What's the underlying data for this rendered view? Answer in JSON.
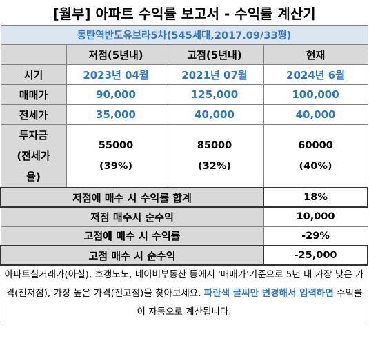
{
  "title": "[월부] 아파트 수익률 보고서 - 수익률 계산기",
  "subtitle": "동탄역반도유보라5차(545세대,2017.09/33평)",
  "columns": [
    "저점(5년내)",
    "고점(5년내)",
    "현재"
  ],
  "rows": {
    "period": {
      "label": "시기",
      "low": "2023년 04월",
      "high": "2021년 07월",
      "now": "2024년 6월"
    },
    "sale": {
      "label": "매매가",
      "low": "90,000",
      "high": "125,000",
      "now": "100,000"
    },
    "jeonse": {
      "label": "전세가",
      "low": "35,000",
      "high": "40,000",
      "now": "40,000"
    },
    "invest": {
      "label_1": "투자금",
      "label_2": "(전세가",
      "label_3": "율)",
      "low_amount": "55000",
      "low_pct": "(39%)",
      "high_amount": "85000",
      "high_pct": "(32%)",
      "now_amount": "60000",
      "now_pct": "(40%)"
    }
  },
  "summary": [
    {
      "label": "저점에 매수 시 수익률 합계",
      "value": "18%"
    },
    {
      "label": "저점 매수시 순수익",
      "value": "10,000"
    },
    {
      "label": "고점에 매수 시 수익률",
      "value": "-29%"
    },
    {
      "label": "고점 매수 시 순수익",
      "value": "-25,000"
    }
  ],
  "note": {
    "line_a": "아파트실거래가(아실), 호갱노노, 네이버부동산 등에서 '매매가'기준으로 5년 내 가장 낮은 가격(전저점), 가장 높은 가격(전고점)을 찾아보세요. ",
    "highlight": "파란색 글씨만 변경해서 입력하면",
    "line_b": " 수익률이 자동으로 계산됩니다."
  },
  "colors": {
    "accent_blue": "#2e75c8",
    "header_gray": "#d9d9d9",
    "subtitle_bg": "#dce6f1"
  }
}
